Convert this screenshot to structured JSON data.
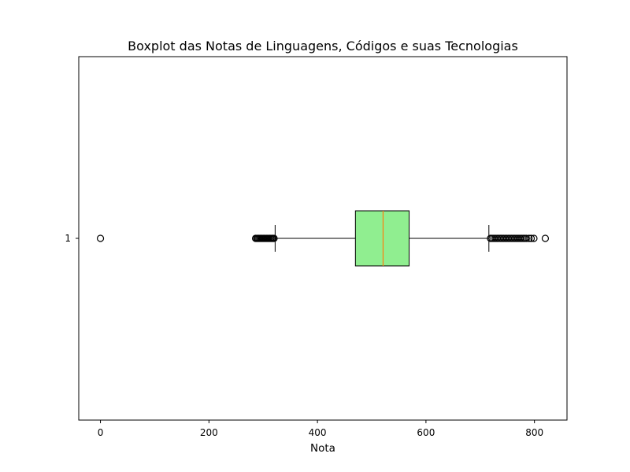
{
  "chart_data": {
    "type": "boxplot",
    "orientation": "horizontal",
    "title": "Boxplot das Notas de Linguagens, Códigos e suas Tecnologias",
    "xlabel": "Nota",
    "ylabel": "",
    "xlim": [
      -40,
      860
    ],
    "xticks": [
      0,
      200,
      400,
      600,
      800
    ],
    "xtick_labels": [
      "0",
      "200",
      "400",
      "600",
      "800"
    ],
    "ytick_labels": [
      "1"
    ],
    "grid": false,
    "box": {
      "category": "1",
      "whisker_low": 322,
      "q1": 470,
      "median": 521,
      "q3": 569,
      "whisker_high": 716,
      "outliers_low": [
        0,
        286,
        288,
        290,
        292,
        294,
        296,
        298,
        300,
        302,
        304,
        306,
        308,
        310,
        312,
        314,
        316,
        318,
        320
      ],
      "outliers_high": [
        719,
        722,
        725,
        728,
        731,
        734,
        737,
        740,
        743,
        746,
        749,
        752,
        755,
        758,
        761,
        764,
        767,
        770,
        773,
        776,
        779,
        782,
        785,
        790,
        794,
        799,
        820
      ]
    },
    "colors": {
      "box_fill": "#90ee90",
      "median_line": "#ff7f0e",
      "lines": "#000000"
    }
  }
}
